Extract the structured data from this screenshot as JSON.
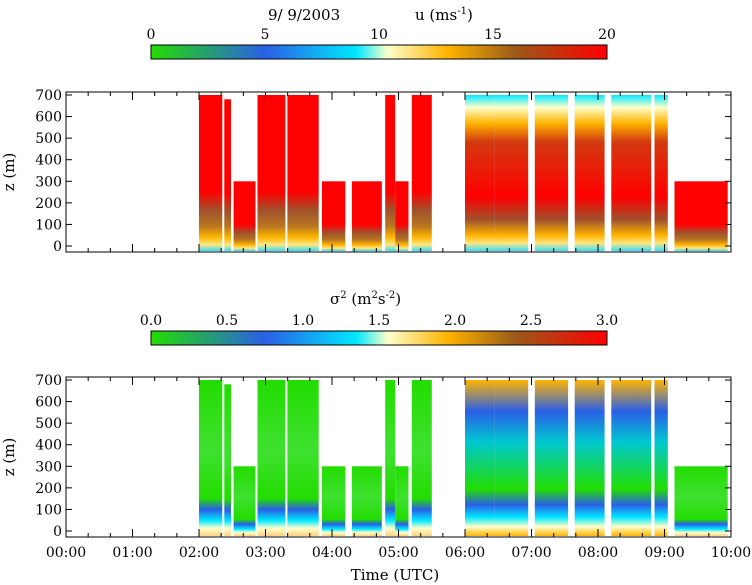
{
  "chart_data": [
    {
      "type": "heatmap",
      "title_date": "9/ 9/2003",
      "title_var": "u (ms",
      "title_var_sup": "-1",
      "title_var_end": ")",
      "colorbar": {
        "min": 0,
        "max": 20,
        "ticks": [
          "0",
          "5",
          "10",
          "15",
          "20"
        ]
      },
      "ylabel": "z (m)",
      "yticks": [
        "0",
        "100",
        "200",
        "300",
        "400",
        "500",
        "600",
        "700"
      ],
      "ylim": [
        0,
        700
      ],
      "xlim_hours": [
        0,
        10
      ],
      "columns": [
        {
          "start": 2.0,
          "end": 2.35,
          "top": 700,
          "profile": "wind"
        },
        {
          "start": 2.38,
          "end": 2.48,
          "top": 680,
          "profile": "wind"
        },
        {
          "start": 2.52,
          "end": 2.85,
          "top": 300,
          "profile": "wind"
        },
        {
          "start": 2.88,
          "end": 3.3,
          "top": 700,
          "profile": "wind"
        },
        {
          "start": 3.33,
          "end": 3.8,
          "top": 700,
          "profile": "wind"
        },
        {
          "start": 3.85,
          "end": 4.2,
          "top": 300,
          "profile": "wind"
        },
        {
          "start": 4.3,
          "end": 4.75,
          "top": 300,
          "profile": "wind"
        },
        {
          "start": 4.8,
          "end": 4.95,
          "top": 700,
          "profile": "wind"
        },
        {
          "start": 4.95,
          "end": 5.15,
          "top": 300,
          "profile": "wind"
        },
        {
          "start": 5.2,
          "end": 5.5,
          "top": 700,
          "profile": "wind"
        },
        {
          "start": 6.0,
          "end": 6.45,
          "top": 700,
          "profile": "wind"
        },
        {
          "start": 6.45,
          "end": 6.95,
          "top": 700,
          "profile": "wind"
        },
        {
          "start": 7.05,
          "end": 7.55,
          "top": 700,
          "profile": "wind"
        },
        {
          "start": 7.65,
          "end": 8.1,
          "top": 700,
          "profile": "wind"
        },
        {
          "start": 8.2,
          "end": 8.8,
          "top": 700,
          "profile": "wind"
        },
        {
          "start": 8.85,
          "end": 9.05,
          "top": 700,
          "profile": "wind"
        },
        {
          "start": 9.15,
          "end": 9.95,
          "top": 300,
          "profile": "wind"
        }
      ]
    },
    {
      "type": "heatmap",
      "title_var": "σ",
      "title_var_sup": "2",
      "title_var_mid": " (m",
      "title_var_sup2": "2",
      "title_var_mid2": "s",
      "title_var_sup3": "-2",
      "title_var_end": ")",
      "colorbar": {
        "min": 0.0,
        "max": 3.0,
        "ticks": [
          "0.0",
          "0.5",
          "1.0",
          "1.5",
          "2.0",
          "2.5",
          "3.0"
        ]
      },
      "ylabel": "z (m)",
      "yticks": [
        "0",
        "100",
        "200",
        "300",
        "400",
        "500",
        "600",
        "700"
      ],
      "ylim": [
        0,
        700
      ],
      "xlabel": "Time (UTC)",
      "xticks": [
        "00:00",
        "01:00",
        "02:00",
        "03:00",
        "04:00",
        "05:00",
        "06:00",
        "07:00",
        "08:00",
        "09:00",
        "10:00"
      ],
      "xlim_hours": [
        0,
        10
      ],
      "columns": [
        {
          "start": 2.0,
          "end": 2.35,
          "top": 700,
          "profile": "var"
        },
        {
          "start": 2.38,
          "end": 2.48,
          "top": 680,
          "profile": "var"
        },
        {
          "start": 2.52,
          "end": 2.85,
          "top": 300,
          "profile": "var"
        },
        {
          "start": 2.88,
          "end": 3.3,
          "top": 700,
          "profile": "var"
        },
        {
          "start": 3.33,
          "end": 3.8,
          "top": 700,
          "profile": "var"
        },
        {
          "start": 3.85,
          "end": 4.2,
          "top": 300,
          "profile": "var"
        },
        {
          "start": 4.3,
          "end": 4.75,
          "top": 300,
          "profile": "var"
        },
        {
          "start": 4.8,
          "end": 4.95,
          "top": 700,
          "profile": "var"
        },
        {
          "start": 4.95,
          "end": 5.15,
          "top": 300,
          "profile": "var"
        },
        {
          "start": 5.2,
          "end": 5.5,
          "top": 700,
          "profile": "var"
        },
        {
          "start": 6.0,
          "end": 6.45,
          "top": 700,
          "profile": "var"
        },
        {
          "start": 6.45,
          "end": 6.95,
          "top": 700,
          "profile": "var"
        },
        {
          "start": 7.05,
          "end": 7.55,
          "top": 700,
          "profile": "var"
        },
        {
          "start": 7.65,
          "end": 8.1,
          "top": 700,
          "profile": "var"
        },
        {
          "start": 8.2,
          "end": 8.8,
          "top": 700,
          "profile": "var"
        },
        {
          "start": 8.85,
          "end": 9.05,
          "top": 700,
          "profile": "var"
        },
        {
          "start": 9.15,
          "end": 9.95,
          "top": 300,
          "profile": "var"
        }
      ]
    }
  ],
  "colors": {
    "colormap": [
      "#22dd00",
      "#2a5fe6",
      "#00e8ff",
      "#ffffcc",
      "#ffb400",
      "#9a5a18",
      "#ff0000"
    ]
  }
}
